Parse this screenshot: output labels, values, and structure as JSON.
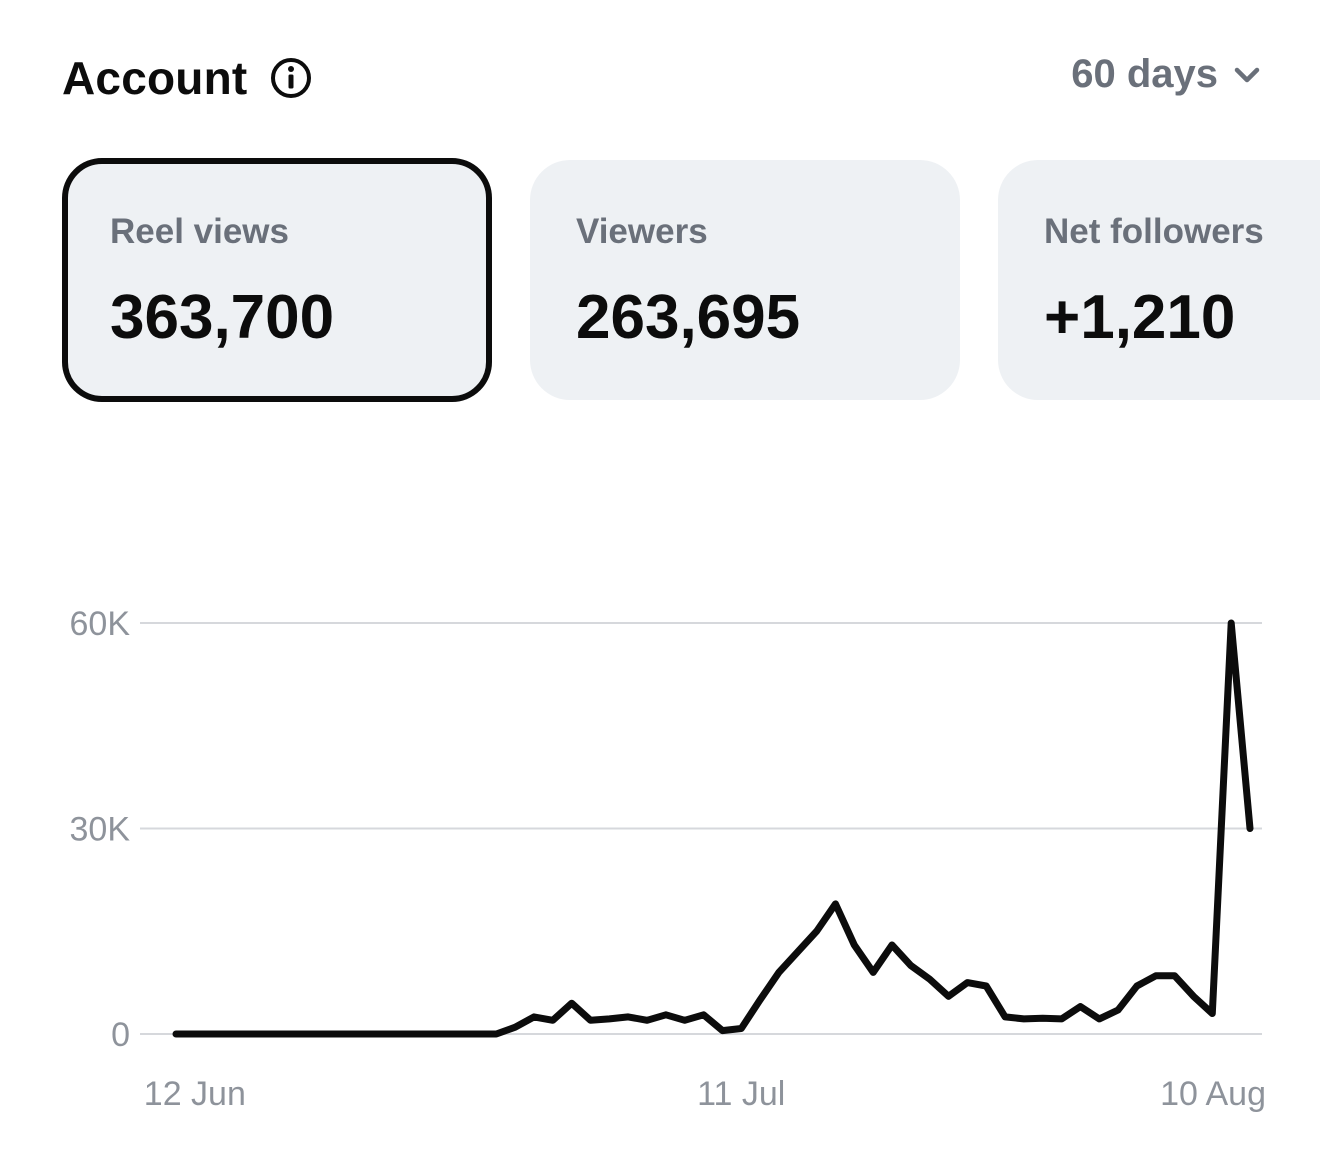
{
  "header": {
    "title": "Account",
    "range_label": "60 days"
  },
  "icons": {
    "info": "info-circle-icon",
    "range": "chevron-down-icon"
  },
  "cards": [
    {
      "label": "Reel views",
      "value": "363,700",
      "selected": true
    },
    {
      "label": "Viewers",
      "value": "263,695",
      "selected": false
    },
    {
      "label": "Net followers",
      "value": "+1,210",
      "selected": false
    }
  ],
  "colors": {
    "line": "#0c0c0c",
    "grid": "#d6d8dc",
    "card_bg": "#eef1f4",
    "muted_text": "#6a707a"
  },
  "chart_data": {
    "type": "line",
    "title": "",
    "xlabel": "",
    "ylabel": "",
    "ylim": [
      0,
      60000
    ],
    "y_ticks": [
      {
        "label": "0",
        "value": 0
      },
      {
        "label": "30K",
        "value": 30000
      },
      {
        "label": "60K",
        "value": 60000
      }
    ],
    "x_ticks": [
      {
        "label": "12 Jun",
        "index": 1
      },
      {
        "label": "11 Jul",
        "index": 30
      },
      {
        "label": "10 Aug",
        "index": 59
      }
    ],
    "grid": true,
    "series": [
      {
        "values": [
          0,
          0,
          0,
          0,
          0,
          0,
          0,
          0,
          0,
          0,
          0,
          0,
          0,
          0,
          0,
          0,
          0,
          0,
          1000,
          2500,
          2000,
          4500,
          2000,
          2200,
          2500,
          2000,
          2800,
          2000,
          2800,
          500,
          800,
          5000,
          9000,
          12000,
          15000,
          19000,
          13000,
          9000,
          13000,
          10000,
          8000,
          5500,
          7500,
          7000,
          2500,
          2200,
          2300,
          2200,
          4000,
          2200,
          3500,
          7000,
          8500,
          8500,
          5500,
          3000,
          60000,
          30000
        ]
      }
    ]
  }
}
